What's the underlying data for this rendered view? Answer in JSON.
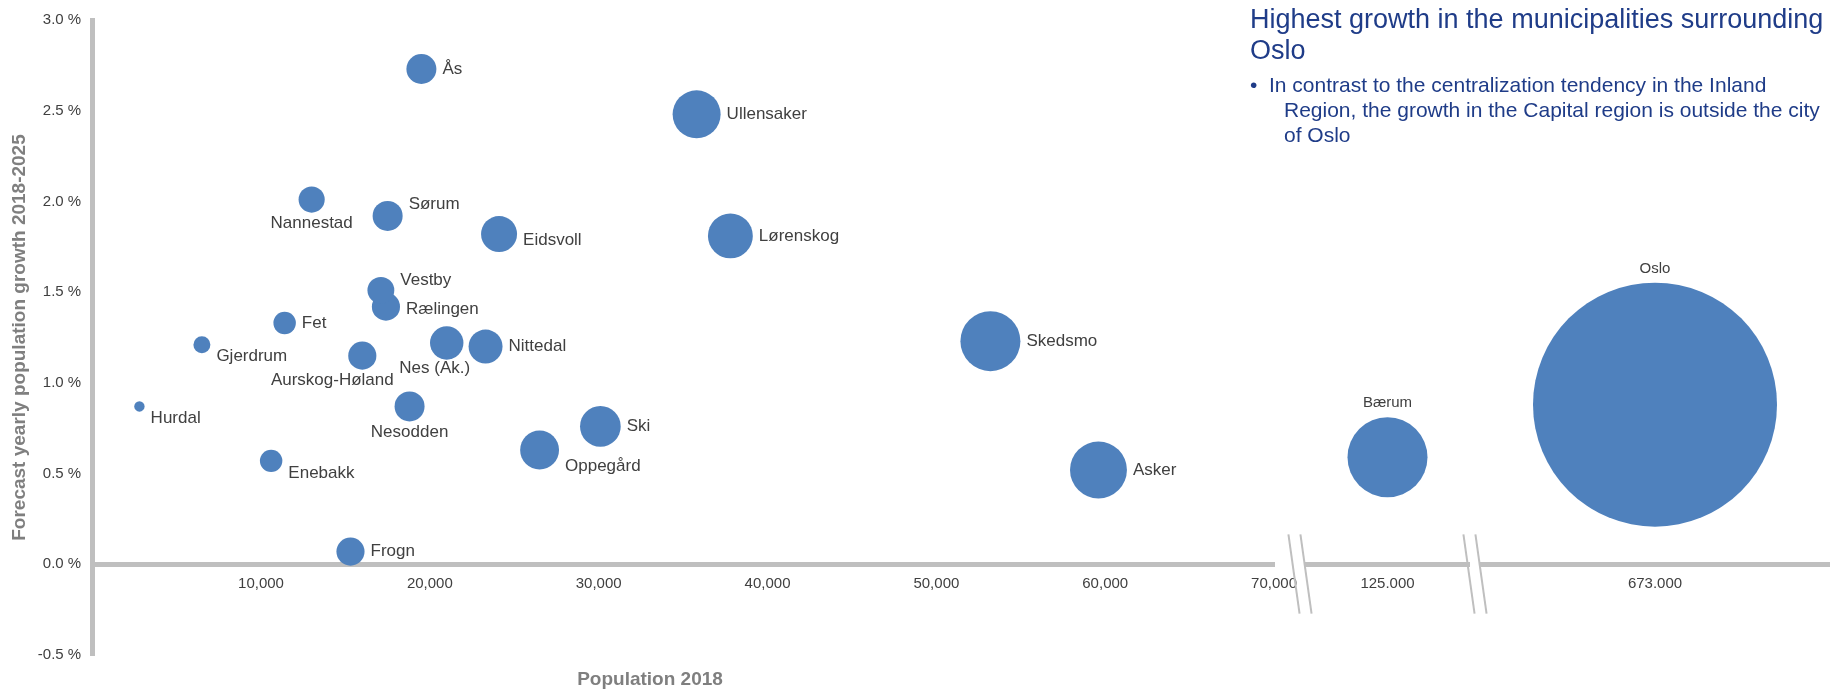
{
  "chart_data": [
    {
      "type": "bubble",
      "title": "Highest growth in the municipalities surrounding Oslo",
      "xlabel": "Population 2018",
      "ylabel": "Forecast yearly population growth 2018-2025",
      "annotations": [
        "•  In contrast to the centralization tendency in the Inland Region, the growth in the Capital region is outside the city of Oslo"
      ],
      "xlim": [
        0,
        70000
      ],
      "xticks": [
        {
          "value": 10000,
          "label": "10,000"
        },
        {
          "value": 20000,
          "label": "20,000"
        },
        {
          "value": 30000,
          "label": "30,000"
        },
        {
          "value": 40000,
          "label": "40,000"
        },
        {
          "value": 50000,
          "label": "50,000"
        },
        {
          "value": 60000,
          "label": "60,000"
        },
        {
          "value": 70000,
          "label": "70,000"
        }
      ],
      "ylim": [
        -0.5,
        3.0
      ],
      "yticks": [
        {
          "value": -0.5,
          "label": "-0.5 %"
        },
        {
          "value": 0,
          "label": "0.0 %"
        },
        {
          "value": 0.5,
          "label": "0.5 %"
        },
        {
          "value": 1.0,
          "label": "1.0 %"
        },
        {
          "value": 1.5,
          "label": "1.5 %"
        },
        {
          "value": 2.0,
          "label": "2.0 %"
        },
        {
          "value": 2.5,
          "label": "2.5 %"
        },
        {
          "value": 3.0,
          "label": "3.0 %"
        }
      ],
      "series": [
        {
          "name": "Ås",
          "color": "#4f81bd",
          "x": [
            19500
          ],
          "values": [
            2.73
          ],
          "sizes": [
            0.25
          ]
        },
        {
          "name": "Ullensaker",
          "color": "#4f81bd",
          "x": [
            35800
          ],
          "values": [
            2.48
          ],
          "sizes": [
            0.64
          ]
        },
        {
          "name": "Nannestad",
          "color": "#4f81bd",
          "x": [
            13000
          ],
          "values": [
            2.01
          ],
          "sizes": [
            0.19
          ]
        },
        {
          "name": "Sørum",
          "color": "#4f81bd",
          "x": [
            17500
          ],
          "values": [
            1.92
          ],
          "sizes": [
            0.25
          ]
        },
        {
          "name": "Eidsvoll",
          "color": "#4f81bd",
          "x": [
            24100
          ],
          "values": [
            1.82
          ],
          "sizes": [
            0.36
          ]
        },
        {
          "name": "Lørenskog",
          "color": "#4f81bd",
          "x": [
            37800
          ],
          "values": [
            1.81
          ],
          "sizes": [
            0.56
          ]
        },
        {
          "name": "Vestby",
          "color": "#4f81bd",
          "x": [
            17100
          ],
          "values": [
            1.51
          ],
          "sizes": [
            0.2
          ]
        },
        {
          "name": "Rælingen",
          "color": "#4f81bd",
          "x": [
            17400
          ],
          "values": [
            1.42
          ],
          "sizes": [
            0.22
          ]
        },
        {
          "name": "Fet",
          "color": "#4f81bd",
          "x": [
            11400
          ],
          "values": [
            1.33
          ],
          "sizes": [
            0.14
          ]
        },
        {
          "name": "Gjerdrum",
          "color": "#4f81bd",
          "x": [
            6500
          ],
          "values": [
            1.21
          ],
          "sizes": [
            0.08
          ]
        },
        {
          "name": "Nes (Ak.)",
          "color": "#4f81bd",
          "x": [
            21000
          ],
          "values": [
            1.22
          ],
          "sizes": [
            0.31
          ]
        },
        {
          "name": "Nittedal",
          "color": "#4f81bd",
          "x": [
            23300
          ],
          "values": [
            1.2
          ],
          "sizes": [
            0.32
          ]
        },
        {
          "name": "Skedsmo",
          "color": "#4f81bd",
          "x": [
            53200
          ],
          "values": [
            1.23
          ],
          "sizes": [
            1
          ]
        },
        {
          "name": "Aurskog-Høland",
          "color": "#4f81bd",
          "x": [
            16000
          ],
          "values": [
            1.15
          ],
          "sizes": [
            0.22
          ]
        },
        {
          "name": "Hurdal",
          "color": "#4f81bd",
          "x": [
            2800
          ],
          "values": [
            0.87
          ],
          "sizes": [
            0.03
          ]
        },
        {
          "name": "Nesodden",
          "color": "#4f81bd",
          "x": [
            18800
          ],
          "values": [
            0.87
          ],
          "sizes": [
            0.25
          ]
        },
        {
          "name": "Ski",
          "color": "#4f81bd",
          "x": [
            30100
          ],
          "values": [
            0.76
          ],
          "sizes": [
            0.46
          ]
        },
        {
          "name": "Oppegård",
          "color": "#4f81bd",
          "x": [
            26500
          ],
          "values": [
            0.63
          ],
          "sizes": [
            0.42
          ]
        },
        {
          "name": "Enebakk",
          "color": "#4f81bd",
          "x": [
            10600
          ],
          "values": [
            0.57
          ],
          "sizes": [
            0.14
          ]
        },
        {
          "name": "Asker",
          "color": "#4f81bd",
          "x": [
            59600
          ],
          "values": [
            0.52
          ],
          "sizes": [
            0.9
          ]
        },
        {
          "name": "Frogn",
          "color": "#4f81bd",
          "x": [
            15300
          ],
          "values": [
            0.07
          ],
          "sizes": [
            0.22
          ]
        }
      ]
    },
    {
      "type": "bubble",
      "categories": [
        "125.000"
      ],
      "ylim": [
        -0.5,
        3.0
      ],
      "tick_labels": "x",
      "series": [
        {
          "name": "Bærum",
          "color": "#4f81bd",
          "values": [
            0.59
          ],
          "sizes": [
            1
          ]
        }
      ]
    },
    {
      "type": "bubble",
      "categories": [
        "673.000"
      ],
      "ylim": [
        -0.5,
        3.0
      ],
      "tick_labels": "x",
      "series": [
        {
          "name": "Oslo",
          "color": "#4f81bd",
          "values": [
            0.88
          ],
          "sizes": [
            1
          ]
        }
      ]
    }
  ]
}
